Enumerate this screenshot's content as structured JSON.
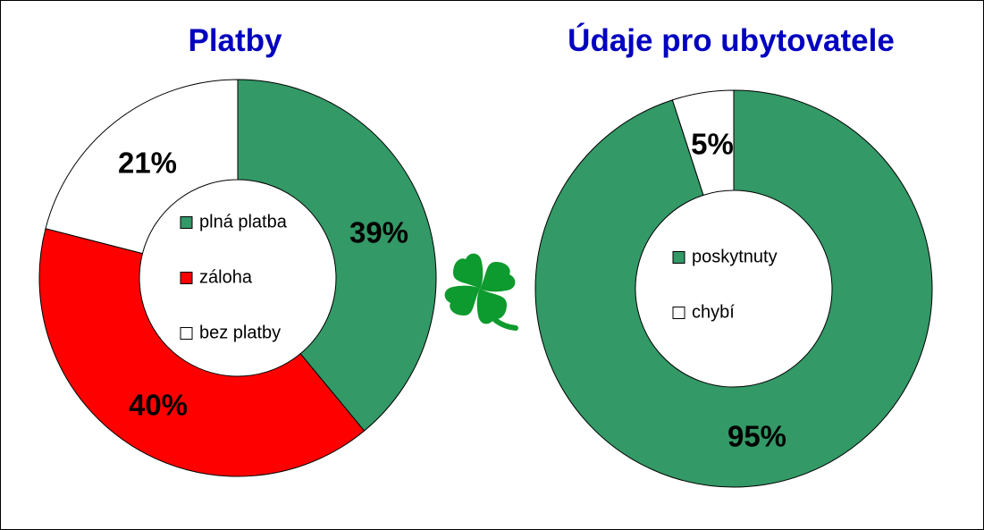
{
  "colors": {
    "title": "#0000c0",
    "green": "#339966",
    "red": "#ff0000",
    "white": "#ffffff",
    "stroke": "#000000",
    "clover": "#0d9a2e"
  },
  "icon": "four-leaf-clover-icon",
  "chart_data": [
    {
      "type": "pie",
      "variant": "donut",
      "title": "Platby",
      "start_angle_deg": 0,
      "direction": "clockwise",
      "slices": [
        {
          "name": "plná platba",
          "value": 39,
          "label": "39%",
          "color": "#339966"
        },
        {
          "name": "záloha",
          "value": 40,
          "label": "40%",
          "color": "#ff0000"
        },
        {
          "name": "bez platby",
          "value": 21,
          "label": "21%",
          "color": "#ffffff"
        }
      ],
      "legend_position": "center"
    },
    {
      "type": "pie",
      "variant": "donut",
      "title": "Údaje pro ubytovatele",
      "start_angle_deg": 0,
      "direction": "clockwise",
      "slices": [
        {
          "name": "poskytnuty",
          "value": 95,
          "label": "95%",
          "color": "#339966"
        },
        {
          "name": "chybí",
          "value": 5,
          "label": "5%",
          "color": "#ffffff"
        }
      ],
      "legend_position": "center"
    }
  ]
}
